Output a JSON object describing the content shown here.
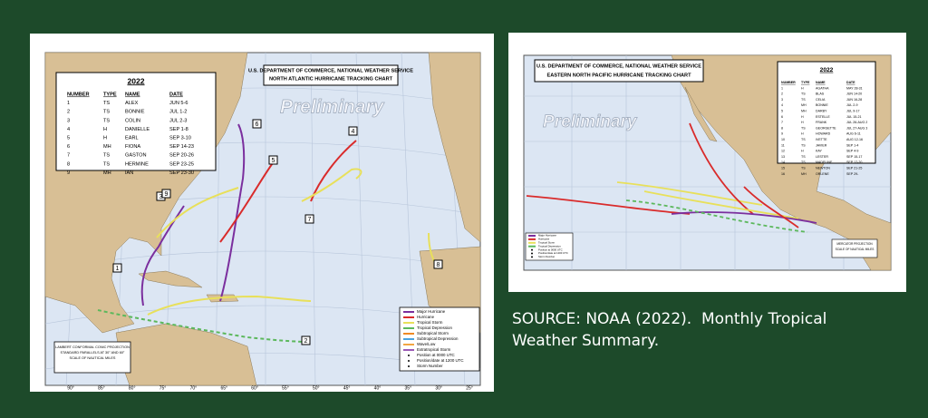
{
  "left_map": {
    "title_lines": [
      "U.S. DEPARTMENT OF COMMERCE, NATIONAL WEATHER SERVICE",
      "NORTH ATLANTIC HURRICANE TRACKING CHART"
    ],
    "watermark": "Preliminary",
    "storm_table": {
      "year": "2022",
      "headers": [
        "NUMBER",
        "TYPE",
        "NAME",
        "DATE"
      ],
      "rows": [
        [
          "1",
          "TS",
          "ALEX",
          "JUN 5-6"
        ],
        [
          "2",
          "TS",
          "BONNIE",
          "JUL 1-2"
        ],
        [
          "3",
          "TS",
          "COLIN",
          "JUL 2-3"
        ],
        [
          "4",
          "H",
          "DANIELLE",
          "SEP 1-8"
        ],
        [
          "5",
          "H",
          "EARL",
          "SEP 3-10"
        ],
        [
          "6",
          "MH",
          "FIONA",
          "SEP 14-23"
        ],
        [
          "7",
          "TS",
          "GASTON",
          "SEP 20-26"
        ],
        [
          "8",
          "TS",
          "HERMINE",
          "SEP 23-25"
        ],
        [
          "9",
          "MH",
          "IAN",
          "SEP 23-30"
        ]
      ]
    },
    "legend": [
      {
        "label": "Major Hurricane",
        "color": "#7b2f9e"
      },
      {
        "label": "Hurricane",
        "color": "#d92b2b"
      },
      {
        "label": "Tropical Storm",
        "color": "#e8e05a"
      },
      {
        "label": "Tropical Depression",
        "color": "#5cb85c"
      },
      {
        "label": "Subtropical Storm",
        "color": "#f08a24"
      },
      {
        "label": "Subtropical Depression",
        "color": "#4aa3df"
      },
      {
        "label": "Wave/Low",
        "color": "#f2a541"
      },
      {
        "label": "Extratropical Storm",
        "color": "#9b59b6"
      },
      {
        "label": "Position at 0000 UTC",
        "color": "#000000"
      },
      {
        "label": "Position/date at 1200 UTC",
        "color": "#000000"
      },
      {
        "label": "Storm Number",
        "color": "#000000"
      }
    ],
    "projection_note": [
      "LAMBERT CONFORMAL CONIC PROJECTION",
      "STANDARD PARALLELS AT 30° AND 60°",
      "SCALE OF NAUTICAL MILES"
    ],
    "longitude_labels": [
      "90°",
      "85°",
      "80°",
      "75°",
      "70°",
      "65°",
      "60°",
      "55°",
      "50°",
      "45°",
      "40°",
      "35°",
      "30°",
      "25°"
    ]
  },
  "right_map": {
    "title_lines": [
      "U.S. DEPARTMENT OF COMMERCE, NATIONAL WEATHER SERVICE",
      "EASTERN NORTH PACIFIC HURRICANE TRACKING CHART"
    ],
    "watermark": "Preliminary",
    "storm_table": {
      "year": "2022",
      "headers": [
        "NUMBER",
        "TYPE",
        "NAME",
        "DATE"
      ],
      "rows": [
        [
          "1",
          "H",
          "AGATHA",
          "MAY 28-31"
        ],
        [
          "2",
          "TS",
          "BLAS",
          "JUN 14-20"
        ],
        [
          "3",
          "TS",
          "CELIA",
          "JUN 16-28"
        ],
        [
          "4",
          "MH",
          "BONNIE",
          "JUL 2-9"
        ],
        [
          "5",
          "MH",
          "DARBY",
          "JUL 9-17"
        ],
        [
          "6",
          "H",
          "ESTELLE",
          "JUL 15-21"
        ],
        [
          "7",
          "H",
          "FRANK",
          "JUL 26-AUG 2"
        ],
        [
          "8",
          "TS",
          "GEORGETTE",
          "JUL 27-AUG 3"
        ],
        [
          "9",
          "H",
          "HOWARD",
          "AUG 6-11"
        ],
        [
          "10",
          "TS",
          "IVETTE",
          "AUG 12-16"
        ],
        [
          "11",
          "TS",
          "JAVIER",
          "SEP 1-4"
        ],
        [
          "12",
          "H",
          "KAY",
          "SEP 4-9"
        ],
        [
          "13",
          "TS",
          "LESTER",
          "SEP 15-17"
        ],
        [
          "14",
          "TS",
          "MADELINE",
          "SEP 17-20"
        ],
        [
          "15",
          "TS",
          "NEWTON",
          "SEP 21-25"
        ],
        [
          "16",
          "MH",
          "ORLENE",
          "SEP 29-"
        ]
      ]
    },
    "legend": [
      {
        "label": "Major Hurricane",
        "color": "#7b2f9e"
      },
      {
        "label": "Hurricane",
        "color": "#d92b2b"
      },
      {
        "label": "Tropical Storm",
        "color": "#e8e05a"
      },
      {
        "label": "Tropical Depression",
        "color": "#5cb85c"
      },
      {
        "label": "Position at 0000 UTC",
        "color": "#000000"
      },
      {
        "label": "Position/date at 1200 UTC",
        "color": "#000000"
      },
      {
        "label": "Storm Number",
        "color": "#000000"
      }
    ],
    "projection_note": [
      "MERCATOR PROJECTION",
      "SCALE OF NAUTICAL MILES"
    ]
  },
  "caption": {
    "lines": [
      "SOURCE: NOAA (2022).  Monthly Tropical",
      "Weather Summary."
    ]
  }
}
